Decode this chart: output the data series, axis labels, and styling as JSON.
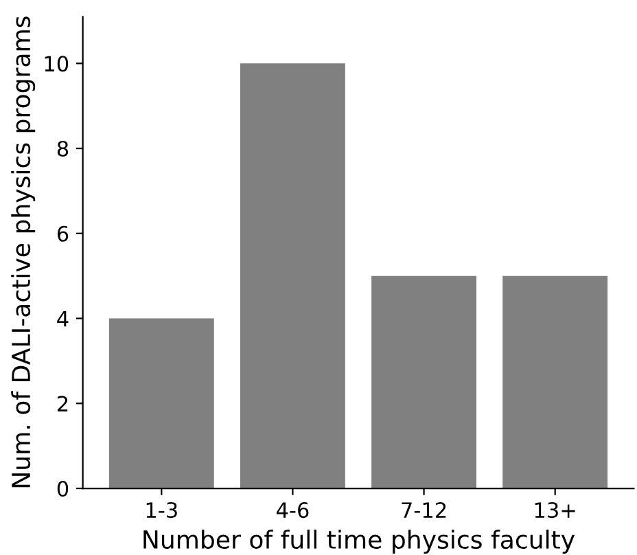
{
  "chart_data": {
    "type": "bar",
    "xlabel": "Number of full time physics faculty",
    "ylabel": "Num. of DALI-active physics programs",
    "categories": [
      "1-3",
      "4-6",
      "7-12",
      "13+"
    ],
    "values": [
      4,
      10,
      5,
      5
    ],
    "color": "#808080",
    "ylim": [
      0,
      11.1
    ],
    "yticks": [
      0,
      2,
      4,
      6,
      8,
      10
    ],
    "grid": false,
    "legend": false
  }
}
